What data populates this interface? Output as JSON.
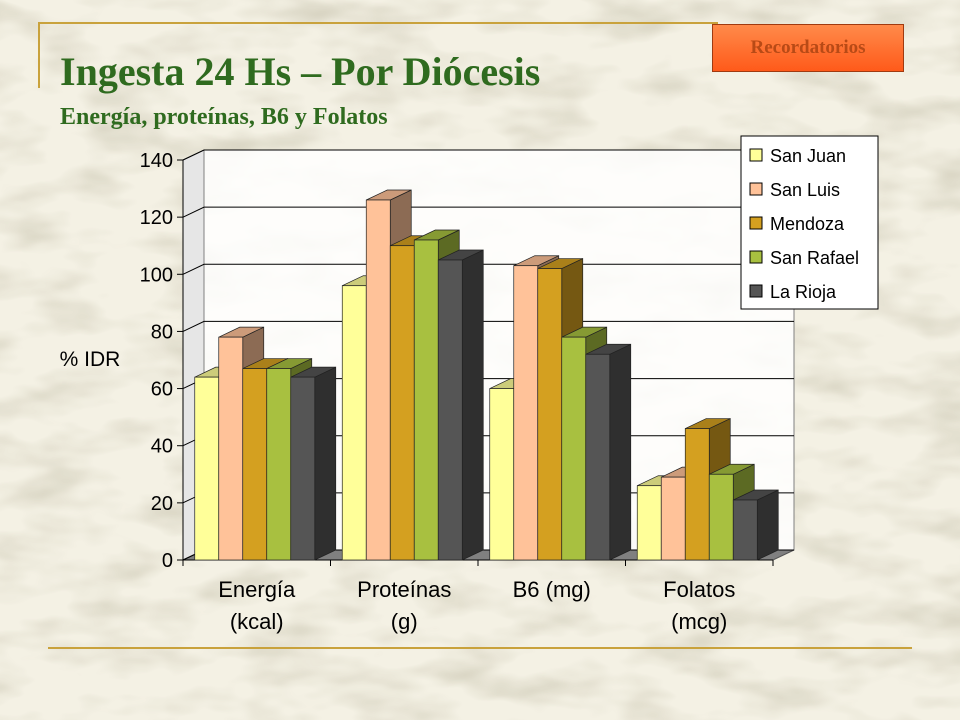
{
  "slide": {
    "title": "Ingesta 24 Hs – Por Diócesis",
    "subtitle": "Energía, proteínas, B6 y Folatos",
    "nav_button_label": "Recordatorios"
  },
  "chart_data": {
    "type": "bar",
    "style": "3d-clustered",
    "categories": [
      [
        "Energía",
        "(kcal)"
      ],
      [
        "Proteínas",
        "(g)"
      ],
      [
        "B6 (mg)"
      ],
      [
        "Folatos",
        "(mcg)"
      ]
    ],
    "ylabel": "% IDR",
    "ylim": [
      0,
      140
    ],
    "yticks": [
      "0",
      "20",
      "40",
      "60",
      "80",
      "100",
      "120",
      "140"
    ],
    "grid": true,
    "legend_position": "top-right",
    "series": [
      {
        "name": "San Juan",
        "values": [
          64,
          96,
          60,
          26
        ],
        "color": "#ffff99"
      },
      {
        "name": "San Luis",
        "values": [
          78,
          126,
          103,
          29
        ],
        "color": "#ffc299"
      },
      {
        "name": "Mendoza",
        "values": [
          67,
          110,
          102,
          46
        ],
        "color": "#d4a020"
      },
      {
        "name": "San Rafael",
        "values": [
          67,
          112,
          78,
          30
        ],
        "color": "#a8c040"
      },
      {
        "name": "La Rioja",
        "values": [
          64,
          105,
          72,
          21
        ],
        "color": "#555555"
      }
    ]
  }
}
